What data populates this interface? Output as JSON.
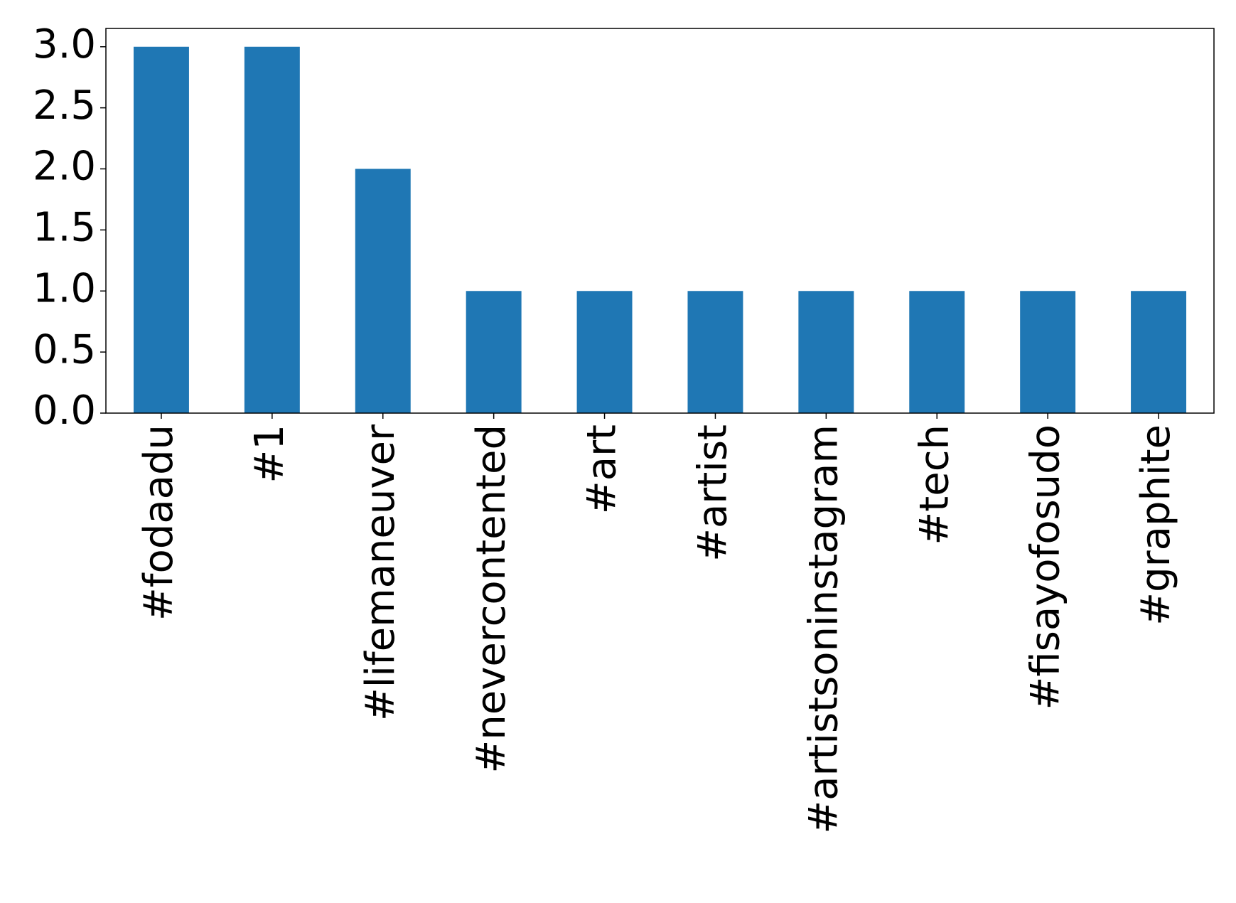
{
  "chart_data": {
    "type": "bar",
    "categories": [
      "#fodaadu",
      "#1",
      "#lifemaneuver",
      "#nevercontented",
      "#art",
      "#artist",
      "#artistsoninstagram",
      "#tech",
      "#fisayofosudo",
      "#graphite"
    ],
    "values": [
      3,
      3,
      2,
      1,
      1,
      1,
      1,
      1,
      1,
      1
    ],
    "color": "#1f77b4",
    "ylim": [
      0,
      3.15
    ],
    "yticks": [
      {
        "value": 0,
        "label": "0.0"
      },
      0.5,
      {
        "value": 1,
        "label": "1.0"
      },
      1.5,
      {
        "value": 2,
        "label": "2.0"
      },
      2.5,
      {
        "value": 3,
        "label": "3.0"
      }
    ],
    "grid": false
  }
}
